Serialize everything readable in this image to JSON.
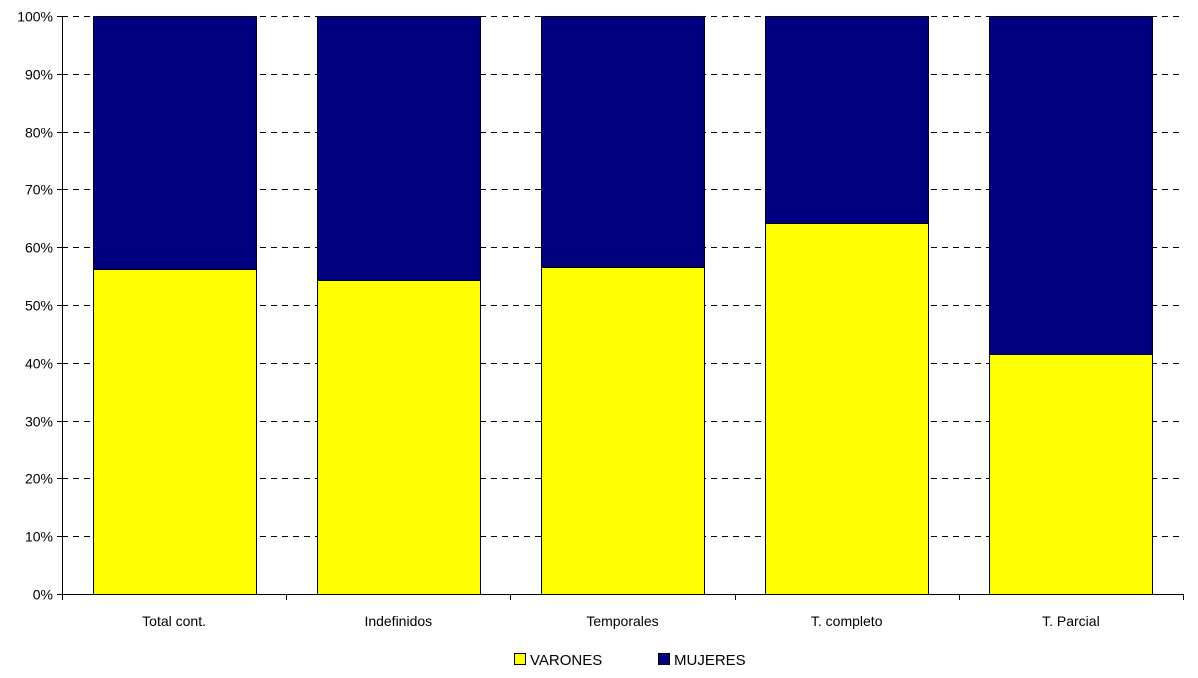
{
  "chart_data": {
    "type": "bar",
    "stacked": true,
    "percent_stacked": true,
    "categories": [
      "Total cont.",
      "Indefinidos",
      "Temporales",
      "T. completo",
      "T. Parcial"
    ],
    "series": [
      {
        "name": "VARONES",
        "color": "#ffff00",
        "values": [
          56.3,
          54.3,
          56.6,
          64.2,
          41.6
        ]
      },
      {
        "name": "MUJERES",
        "color": "#000080",
        "values": [
          43.7,
          45.7,
          43.4,
          35.8,
          58.4
        ]
      }
    ],
    "ylim": [
      0,
      100
    ],
    "y_ticks": [
      "0%",
      "10%",
      "20%",
      "30%",
      "40%",
      "50%",
      "60%",
      "70%",
      "80%",
      "90%",
      "100%"
    ],
    "grid": true,
    "legend_position": "bottom"
  }
}
